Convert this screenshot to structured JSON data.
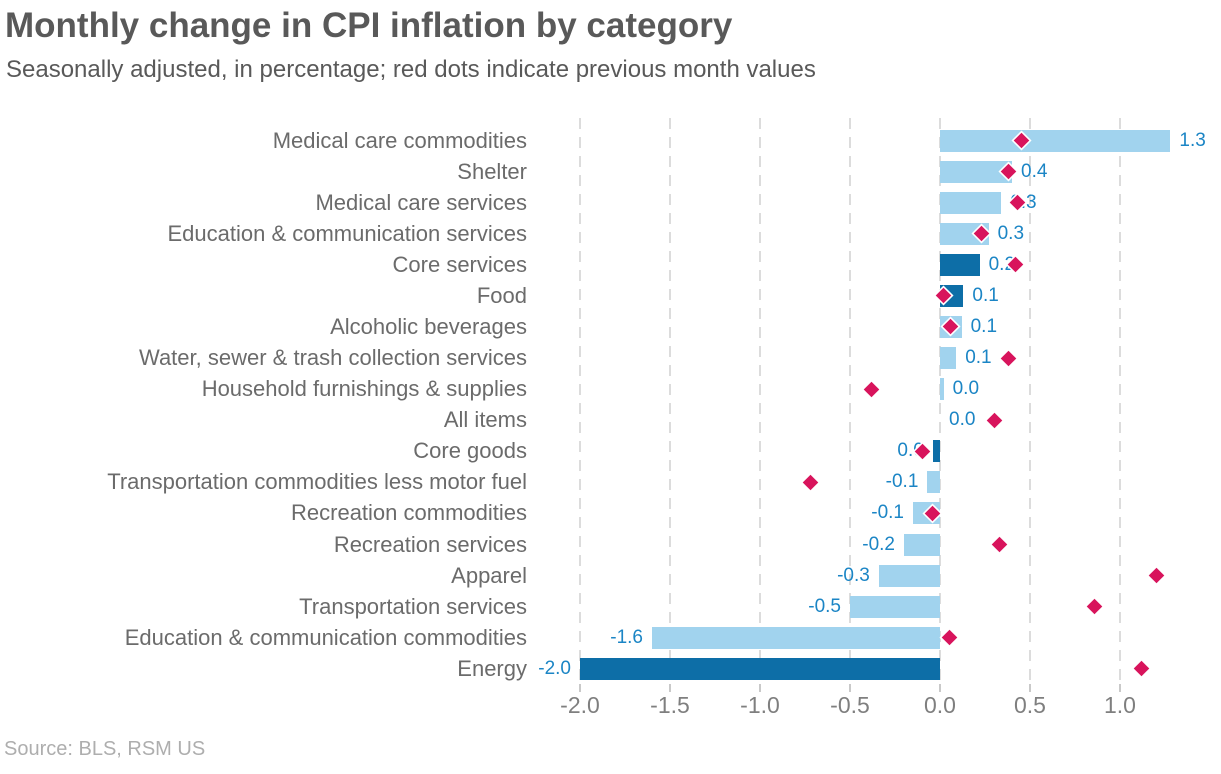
{
  "title": "Monthly change in CPI inflation by category",
  "subtitle": "Seasonally adjusted, in percentage; red dots indicate previous month values",
  "source": "Source: BLS, RSM US",
  "colors": {
    "bar_light": "#A1D3EE",
    "bar_dark": "#0D6EA7",
    "dot_red": "#D8145C",
    "value_label_blue": "#1B85C5",
    "title_gray": "#595959",
    "category_gray": "#6B6B6B",
    "axis_gray": "#7F7F7F",
    "source_gray": "#AEAEAE",
    "gridline_gray": "#DCDCDC"
  },
  "chart_data": {
    "type": "bar",
    "orientation": "horizontal",
    "title": "Monthly change in CPI inflation by category",
    "subtitle": "Seasonally adjusted, in percentage; red dots indicate previous month values",
    "xlabel": "",
    "ylabel": "",
    "xlim": [
      -2.35,
      1.55
    ],
    "x_ticks": [
      -2.0,
      -1.5,
      -1.0,
      -0.5,
      0.0,
      0.5,
      1.0
    ],
    "x_tick_labels": [
      "-2.0",
      "-1.5",
      "-1.0",
      "-0.5",
      "0.0",
      "0.5",
      "1.0"
    ],
    "grid": "vertical-dashed",
    "legend": "none",
    "categories": [
      "Medical care commodities",
      "Shelter",
      "Medical care services",
      "Education & communication services",
      "Core services",
      "Food",
      "Alcoholic beverages",
      "Water, sewer & trash collection services",
      "Household furnishings & supplies",
      "All items",
      "Core goods",
      "Transportation commodities less motor fuel",
      "Recreation commodities",
      "Recreation services",
      "Apparel",
      "Transportation services",
      "Education & communication commodities",
      "Energy"
    ],
    "series": [
      {
        "name": "Current month change",
        "values": [
          1.3,
          0.4,
          0.3,
          0.3,
          0.2,
          0.1,
          0.1,
          0.1,
          0.0,
          0.0,
          0.0,
          -0.1,
          -0.1,
          -0.2,
          -0.3,
          -0.5,
          -1.6,
          -2.0
        ],
        "values_precise": [
          1.28,
          0.4,
          0.34,
          0.27,
          0.22,
          0.13,
          0.12,
          0.09,
          0.02,
          0.0,
          -0.04,
          -0.07,
          -0.15,
          -0.2,
          -0.34,
          -0.5,
          -1.6,
          -2.0
        ],
        "data_labels": [
          "1.3",
          "0.4",
          "0.3",
          "0.3",
          "0.2",
          "0.1",
          "0.1",
          "0.1",
          "0.0",
          "0.0",
          "0.0",
          "-0.1",
          "-0.1",
          "-0.2",
          "-0.3",
          "-0.5",
          "-1.6",
          "-2.0"
        ]
      },
      {
        "name": "Previous month value (red dots)",
        "values": [
          0.45,
          0.38,
          0.43,
          0.23,
          0.42,
          0.02,
          0.06,
          0.38,
          -0.38,
          0.3,
          -0.1,
          -0.72,
          -0.04,
          0.33,
          1.2,
          0.86,
          0.05,
          1.12
        ]
      }
    ],
    "highlighted_categories": [
      "Core services",
      "Food",
      "All items",
      "Core goods",
      "Energy"
    ]
  }
}
